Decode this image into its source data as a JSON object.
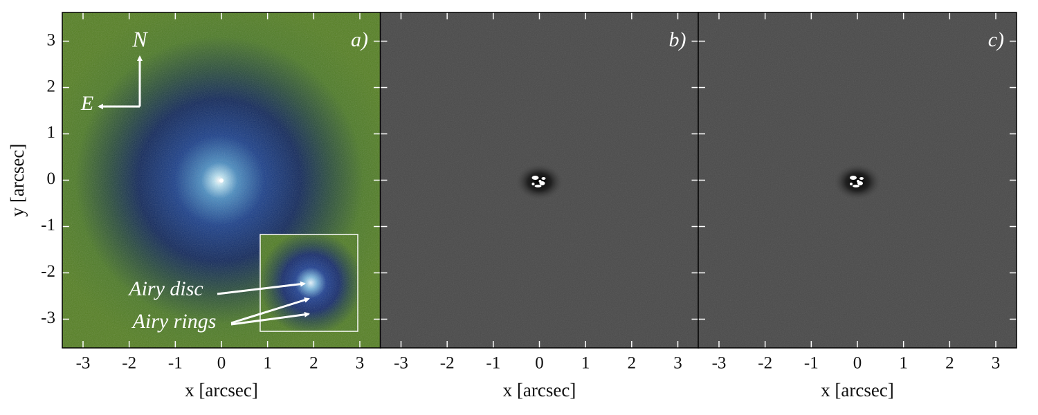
{
  "chart_data": [
    {
      "type": "image",
      "panel_label": "a)",
      "xlabel": "x [arcsec]",
      "ylabel": "y [arcsec]",
      "xlim": [
        -3.45,
        3.45
      ],
      "xticks": [
        -3,
        -2,
        -1,
        0,
        1,
        2,
        3
      ],
      "ylim": [
        -3.62,
        3.62
      ],
      "yticks": [
        -3,
        -2,
        -1,
        0,
        1,
        2,
        3
      ],
      "annotations": [
        "N",
        "E",
        "Airy disc",
        "Airy rings"
      ]
    },
    {
      "type": "image",
      "panel_label": "b)",
      "xlabel": "x [arcsec]",
      "xlim": [
        -3.45,
        3.45
      ],
      "xticks": [
        -3,
        -2,
        -1,
        0,
        1,
        2,
        3
      ],
      "ylim": [
        -3.62,
        3.62
      ],
      "yticks": [
        -3,
        -2,
        -1,
        0,
        1,
        2,
        3
      ]
    },
    {
      "type": "image",
      "panel_label": "c)",
      "xlabel": "x [arcsec]",
      "xlim": [
        -3.45,
        3.45
      ],
      "xticks": [
        -3,
        -2,
        -1,
        0,
        1,
        2,
        3
      ],
      "ylim": [
        -3.62,
        3.62
      ],
      "yticks": [
        -3,
        -2,
        -1,
        0,
        1,
        2,
        3
      ]
    }
  ]
}
